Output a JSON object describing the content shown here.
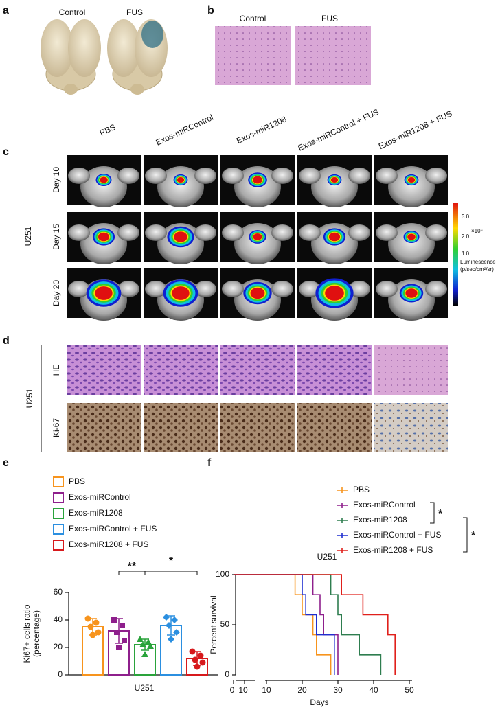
{
  "panel_a": {
    "label": "a",
    "captions": [
      "Control",
      "FUS"
    ]
  },
  "panel_b": {
    "label": "b",
    "captions": [
      "Control",
      "FUS"
    ]
  },
  "panel_c": {
    "label": "c",
    "columns": [
      "PBS",
      "Exos-miRControl",
      "Exos-miR1208",
      "Exos-miRControl + FUS",
      "Exos-miR1208 + FUS"
    ],
    "rows": [
      "Day 10",
      "Day 15",
      "Day 20"
    ],
    "group": "U251",
    "colorbar": {
      "ticks": [
        "3.0",
        "2.0",
        "1.0"
      ],
      "exponent": "×10⁶",
      "title": "Luminescence",
      "unit": "(p/sec/cm²/sr)"
    }
  },
  "panel_d": {
    "label": "d",
    "rows": [
      "HE",
      "Ki-67"
    ],
    "group": "U251"
  },
  "chart_data": [
    {
      "type": "bar",
      "label": "e",
      "categories": [
        "U251"
      ],
      "ylabel": [
        "Ki67+ cells ratio",
        "(percentage)"
      ],
      "ylim": [
        0,
        60
      ],
      "yticks": [
        0,
        20,
        40,
        60
      ],
      "annotations": [
        "**",
        "*"
      ],
      "series": [
        {
          "name": "PBS",
          "color": "#f7941d",
          "marker": "circle",
          "values": [
            35
          ],
          "errors": [
            6
          ],
          "points": [
            [
              41,
              38,
              35,
              31,
              29
            ]
          ]
        },
        {
          "name": "Exos-miRControl",
          "color": "#8e1f8c",
          "marker": "square",
          "values": [
            32
          ],
          "errors": [
            9
          ],
          "points": [
            [
              40,
              36,
              31,
              25,
              20
            ]
          ]
        },
        {
          "name": "Exos-miR1208",
          "color": "#2aa33b",
          "marker": "triangle",
          "values": [
            22
          ],
          "errors": [
            4
          ],
          "points": [
            [
              26,
              24,
              22,
              21,
              15
            ]
          ]
        },
        {
          "name": "Exos-miRControl + FUS",
          "color": "#2b8fe0",
          "marker": "diamond",
          "values": [
            36
          ],
          "errors": [
            7
          ],
          "points": [
            [
              42,
              40,
              36,
              31,
              26
            ]
          ]
        },
        {
          "name": "Exos-miR1208 + FUS",
          "color": "#d7191c",
          "marker": "circle",
          "values": [
            12
          ],
          "errors": [
            5
          ],
          "points": [
            [
              17,
              14,
              11,
              9,
              6
            ]
          ]
        }
      ]
    },
    {
      "type": "step",
      "label": "f",
      "title": "U251",
      "xlabel": "Days",
      "ylabel": "Percent survival",
      "xlim": [
        10,
        50
      ],
      "xticks": [
        10,
        20,
        30,
        40,
        50
      ],
      "xticks_break": [
        0,
        10
      ],
      "ylim": [
        0,
        100
      ],
      "yticks": [
        0,
        50,
        100
      ],
      "annotations": [
        "*",
        "*"
      ],
      "series": [
        {
          "name": "PBS",
          "color": "#f7941d",
          "x": [
            0,
            18,
            20,
            23,
            24,
            28
          ],
          "values": [
            100,
            80,
            60,
            40,
            20,
            0
          ]
        },
        {
          "name": "Exos-miRControl",
          "color": "#8e1f8c",
          "x": [
            0,
            23,
            25,
            26,
            30
          ],
          "values": [
            100,
            80,
            60,
            40,
            0
          ]
        },
        {
          "name": "Exos-miR1208",
          "color": "#2e7d4f",
          "x": [
            0,
            28,
            30,
            31,
            36,
            42
          ],
          "values": [
            100,
            80,
            60,
            40,
            20,
            0
          ]
        },
        {
          "name": "Exos-miRControl + FUS",
          "color": "#1f2fd0",
          "x": [
            0,
            20,
            21,
            24,
            29
          ],
          "values": [
            100,
            80,
            60,
            40,
            0
          ]
        },
        {
          "name": "Exos-miR1208 + FUS",
          "color": "#e0201b",
          "x": [
            0,
            31,
            37,
            44,
            46
          ],
          "values": [
            100,
            80,
            60,
            40,
            0
          ]
        }
      ]
    }
  ]
}
